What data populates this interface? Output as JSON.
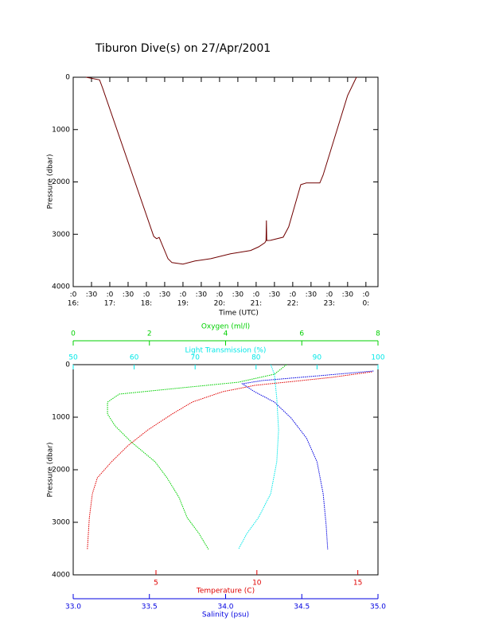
{
  "chart_data": [
    {
      "type": "line",
      "title": "Tiburon Dive(s) on 27/Apr/2001",
      "xlabel": "Time (UTC)",
      "ylabel": "Pressure (dbar)",
      "xlim": [
        16,
        24.33
      ],
      "ylim": [
        0,
        4000
      ],
      "y_inverted": true,
      "xticks": [
        {
          "value": 16,
          "label": ":0"
        },
        {
          "value": 16.5,
          "label": ":30"
        },
        {
          "value": 17,
          "label": ":0"
        },
        {
          "value": 17.5,
          "label": ":30"
        },
        {
          "value": 18,
          "label": ":0"
        },
        {
          "value": 18.5,
          "label": ":30"
        },
        {
          "value": 19,
          "label": ":0"
        },
        {
          "value": 19.5,
          "label": ":30"
        },
        {
          "value": 20,
          "label": ":0"
        },
        {
          "value": 20.5,
          "label": ":30"
        },
        {
          "value": 21,
          "label": ":0"
        },
        {
          "value": 21.5,
          "label": ":30"
        },
        {
          "value": 22,
          "label": ":0"
        },
        {
          "value": 22.5,
          "label": ":30"
        },
        {
          "value": 23,
          "label": ":0"
        },
        {
          "value": 23.5,
          "label": ":30"
        },
        {
          "value": 24,
          "label": ":0"
        }
      ],
      "xtick_hours": [
        {
          "value": 16,
          "label": "16:"
        },
        {
          "value": 17,
          "label": "17:"
        },
        {
          "value": 18,
          "label": "18:"
        },
        {
          "value": 19,
          "label": "19:"
        },
        {
          "value": 20,
          "label": "20:"
        },
        {
          "value": 21,
          "label": "21:"
        },
        {
          "value": 22,
          "label": "22:"
        },
        {
          "value": 23,
          "label": "23:"
        },
        {
          "value": 24,
          "label": "0:"
        }
      ],
      "yticks": [
        0,
        1000,
        2000,
        3000,
        4000
      ],
      "series": [
        {
          "color": "#700000",
          "x": [
            16.35,
            16.72,
            16.8,
            18.2,
            18.28,
            18.35,
            18.59,
            18.7,
            19.0,
            19.33,
            19.76,
            20.3,
            20.85,
            21.07,
            21.24,
            21.27,
            21.28,
            21.29,
            21.39,
            21.74,
            21.89,
            22.22,
            22.37,
            22.74,
            22.83,
            23.5,
            23.74
          ],
          "values": [
            0,
            50,
            200,
            3040,
            3085,
            3060,
            3466,
            3540,
            3570,
            3510,
            3466,
            3374,
            3310,
            3240,
            3160,
            3120,
            2736,
            3120,
            3116,
            3055,
            2858,
            2052,
            2020,
            2020,
            1870,
            350,
            0
          ]
        }
      ]
    },
    {
      "type": "profile",
      "ylabel": "Pressure (dbar)",
      "ylim": [
        0,
        4000
      ],
      "y_inverted": true,
      "yticks": [
        0,
        1000,
        2000,
        3000,
        4000
      ],
      "axes": [
        {
          "name": "Oxygen (ml/l)",
          "color": "#00d000",
          "position": "top",
          "xlim": [
            0,
            8
          ],
          "xticks": [
            0,
            2,
            4,
            6,
            8
          ],
          "pressure": [
            0,
            182,
            333,
            485,
            560,
            712,
            939,
            1167,
            1470,
            1848,
            2151,
            2530,
            2909,
            3212,
            3515
          ],
          "values": [
            5.6,
            5.28,
            4.34,
            2.25,
            1.21,
            0.9,
            0.9,
            1.1,
            1.52,
            2.15,
            2.46,
            2.78,
            2.99,
            3.3,
            3.55
          ]
        },
        {
          "name": "Light Transmission (%)",
          "color": "#00e8e8",
          "position": "top",
          "xlim": [
            50,
            100
          ],
          "xticks": [
            50,
            60,
            70,
            80,
            90,
            100
          ],
          "pressure": [
            0,
            182,
            636,
            1242,
            1848,
            2454,
            2909,
            3212,
            3515
          ],
          "values": [
            82.4,
            83,
            83.4,
            83.7,
            83.4,
            82.4,
            80.4,
            78.5,
            77.1
          ]
        },
        {
          "name": "Temperature (C)",
          "color": "#e00000",
          "position": "bottom",
          "xlim": [
            0.9,
            16.0
          ],
          "xticks": [
            5,
            10,
            15
          ],
          "pressure": [
            136,
            242,
            303,
            394,
            515,
            712,
            939,
            1242,
            1545,
            1848,
            2151,
            2454,
            2909,
            3515
          ],
          "values": [
            15.7,
            13.7,
            12.2,
            9.9,
            8.3,
            6.8,
            5.8,
            4.6,
            3.6,
            2.8,
            2.1,
            1.85,
            1.7,
            1.6
          ]
        },
        {
          "name": "Salinity (psu)",
          "color": "#0000e0",
          "position": "bottom",
          "xlim": [
            33,
            35
          ],
          "xticks": [
            {
              "value": 33,
              "label": "33.0"
            },
            {
              "value": 33.5,
              "label": "33.5"
            },
            {
              "value": 34,
              "label": "34.0"
            },
            {
              "value": 34.5,
              "label": "34.5"
            },
            {
              "value": 35,
              "label": "35.0"
            }
          ],
          "pressure": [
            121,
            212,
            303,
            364,
            515,
            712,
            1015,
            1394,
            1848,
            2454,
            3060,
            3515
          ],
          "values": [
            34.97,
            34.61,
            34.24,
            34.11,
            34.19,
            34.32,
            34.43,
            34.53,
            34.6,
            34.64,
            34.66,
            34.67
          ]
        }
      ]
    }
  ]
}
